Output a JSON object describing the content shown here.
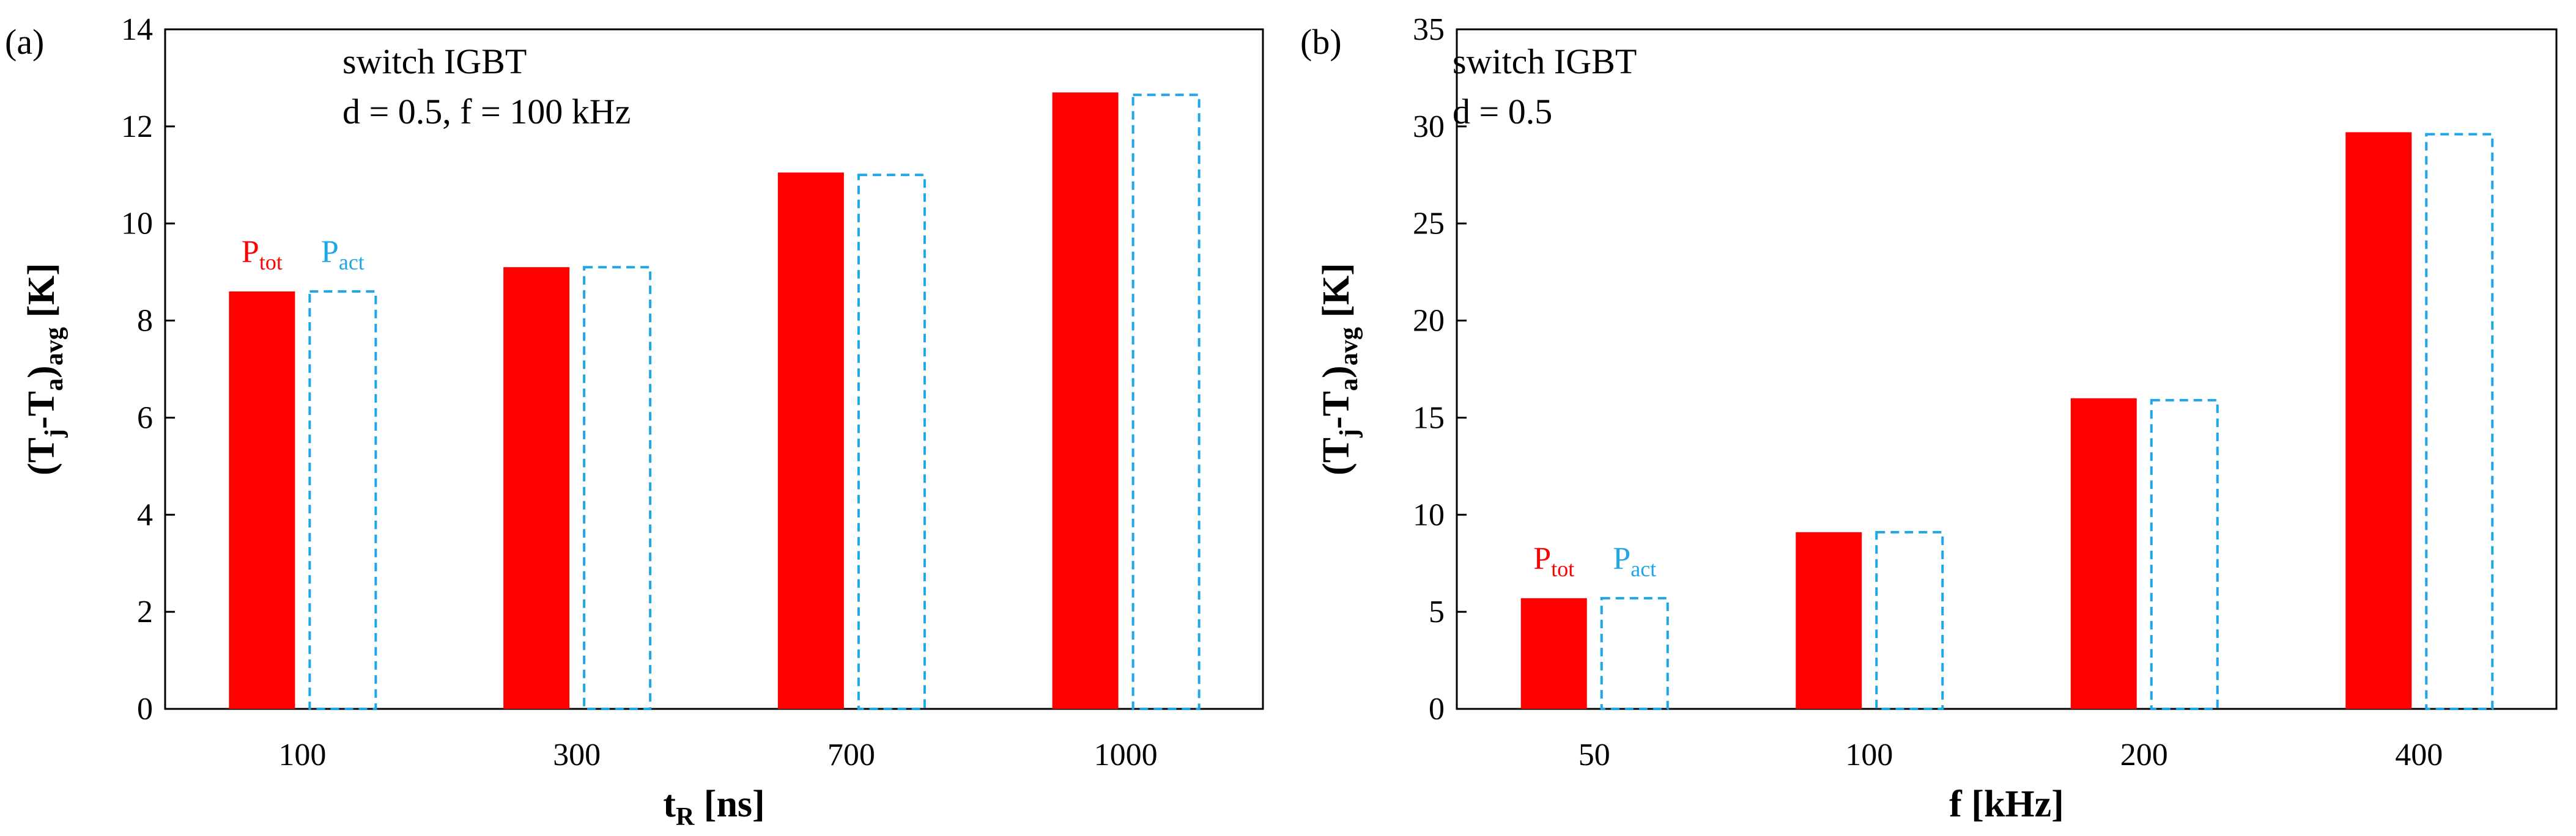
{
  "chart_data": [
    {
      "type": "bar",
      "panel_label": "(a)",
      "annotation_lines": [
        "switch IGBT",
        "d = 0.5, f = 100 kHz"
      ],
      "categories": [
        "100",
        "300",
        "700",
        "1000"
      ],
      "xlabel": {
        "main": "t",
        "sub": "R",
        "rest": " [ns]"
      },
      "ylabel": {
        "p1": "(T",
        "s1": "j",
        "p2": "-T",
        "s2": "a",
        "p3": ")",
        "s3": "avg",
        "p4": " [K]"
      },
      "ylim": [
        0,
        14
      ],
      "yticks": [
        0,
        2,
        4,
        6,
        8,
        10,
        12,
        14
      ],
      "grid": false,
      "series": [
        {
          "name": "P_tot",
          "label_main": "P",
          "label_sub": "tot",
          "color": "#ff0000",
          "style": "solid",
          "values": [
            8.6,
            9.1,
            11.05,
            12.7
          ]
        },
        {
          "name": "P_act",
          "label_main": "P",
          "label_sub": "act",
          "color": "#1ea6e6",
          "style": "dashed",
          "values": [
            8.6,
            9.1,
            11.0,
            12.65
          ]
        }
      ]
    },
    {
      "type": "bar",
      "panel_label": "(b)",
      "annotation_lines": [
        "switch IGBT",
        "d = 0.5"
      ],
      "categories": [
        "50",
        "100",
        "200",
        "400"
      ],
      "xlabel": {
        "main": "f [kHz]",
        "sub": "",
        "rest": ""
      },
      "ylabel": {
        "p1": "(T",
        "s1": "j",
        "p2": "-T",
        "s2": "a",
        "p3": ")",
        "s3": "avg",
        "p4": " [K]"
      },
      "ylim": [
        0,
        35
      ],
      "yticks": [
        0,
        5,
        10,
        15,
        20,
        25,
        30,
        35
      ],
      "grid": false,
      "series": [
        {
          "name": "P_tot",
          "label_main": "P",
          "label_sub": "tot",
          "color": "#ff0000",
          "style": "solid",
          "values": [
            5.7,
            9.1,
            16.0,
            29.7
          ]
        },
        {
          "name": "P_act",
          "label_main": "P",
          "label_sub": "act",
          "color": "#1ea6e6",
          "style": "dashed",
          "values": [
            5.7,
            9.1,
            15.9,
            29.6
          ]
        }
      ]
    }
  ]
}
